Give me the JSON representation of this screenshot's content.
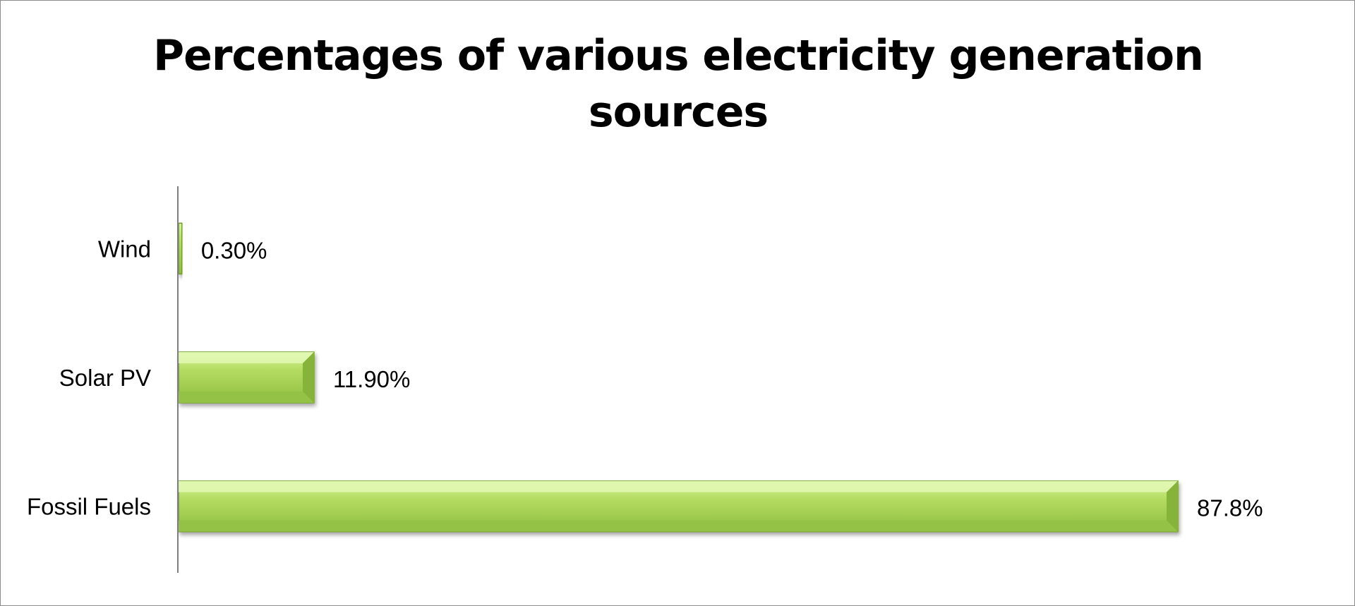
{
  "chart_data": {
    "type": "bar",
    "orientation": "horizontal",
    "title_lines": [
      "Percentages of various electricity generation",
      "sources"
    ],
    "categories": [
      "Wind",
      "Solar PV",
      "Fossil Fuels"
    ],
    "values": [
      0.3,
      11.9,
      87.8
    ],
    "value_labels": [
      "0.30%",
      "11.90%",
      "87.8%"
    ],
    "unit": "%",
    "xlim": [
      0,
      100
    ],
    "grid": false,
    "legend": "none",
    "bar_color": "#9bc84a"
  }
}
